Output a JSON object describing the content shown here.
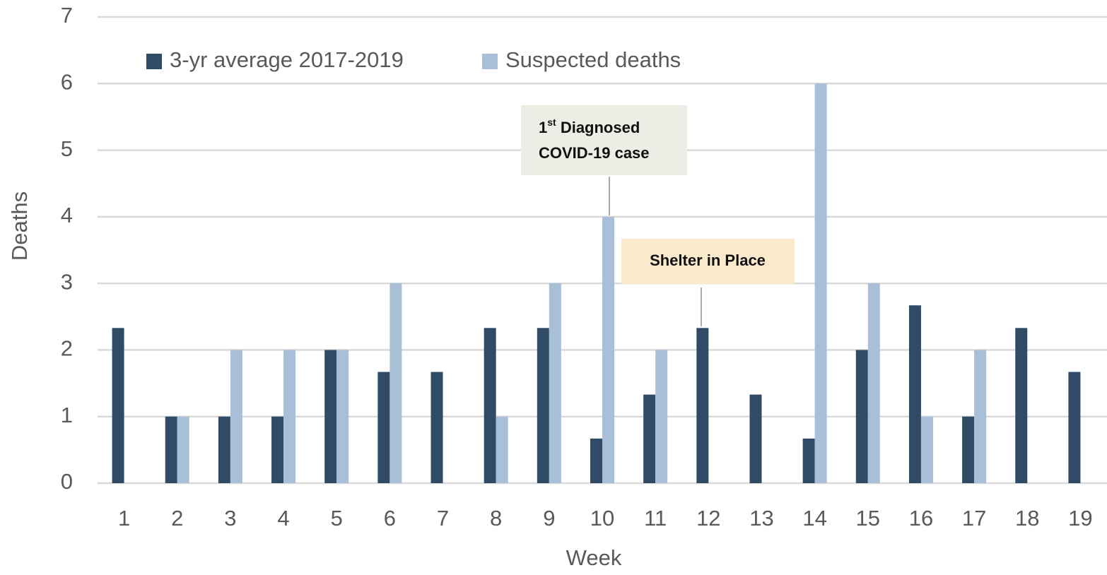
{
  "chart_data": {
    "type": "bar",
    "x_label": "Week",
    "y_label": "Deaths",
    "categories": [
      "1",
      "2",
      "3",
      "4",
      "5",
      "6",
      "7",
      "8",
      "9",
      "10",
      "11",
      "12",
      "13",
      "14",
      "15",
      "16",
      "17",
      "18",
      "19"
    ],
    "series": [
      {
        "name": "3-yr average 2017-2019",
        "color": "#2f4b66",
        "values": [
          2.33,
          1,
          1,
          1,
          2,
          1.67,
          1.67,
          2.33,
          2.33,
          0.67,
          1.33,
          2.33,
          1.33,
          0.67,
          2,
          2.67,
          1,
          2.33,
          1.67
        ]
      },
      {
        "name": "Suspected deaths",
        "color": "#a8bfd7",
        "values": [
          0,
          1,
          2,
          2,
          2,
          3,
          0,
          1,
          3,
          4,
          2,
          0,
          0,
          6,
          3,
          1,
          2,
          0,
          0
        ]
      }
    ],
    "ylim": [
      0,
      7
    ],
    "yticks": [
      0,
      1,
      2,
      3,
      4,
      5,
      6,
      7
    ],
    "grid": true,
    "legend": "top-left",
    "annotations": [
      {
        "parts": [
          "1",
          "st",
          " Diagnosed"
        ],
        "line2": "COVID-19 case"
      },
      {
        "text": "Shelter in Place"
      }
    ]
  }
}
